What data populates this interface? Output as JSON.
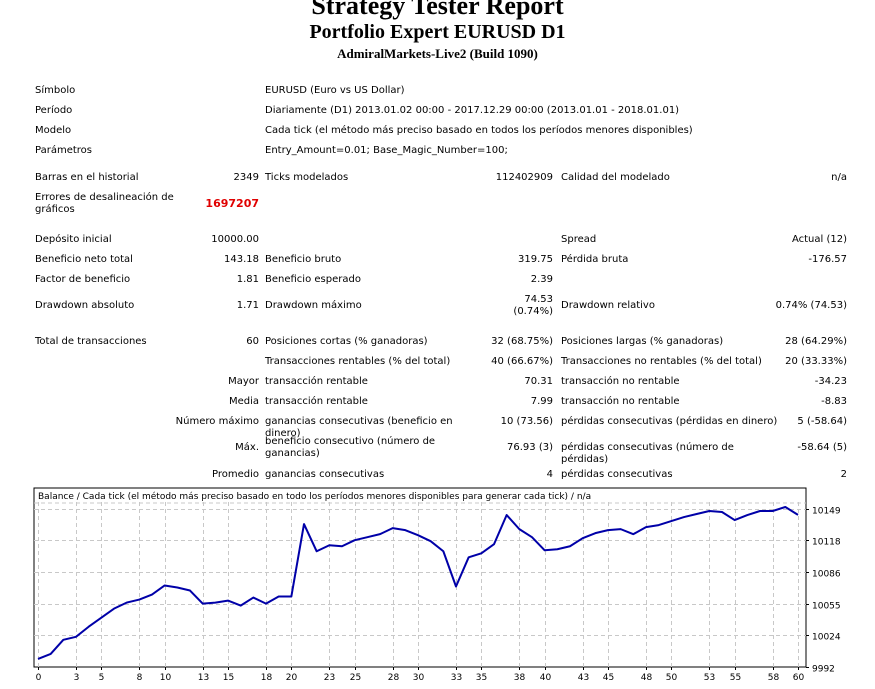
{
  "header": {
    "title": "Strategy Tester Report",
    "subtitle": "Portfolio Expert EURUSD D1",
    "server": "AdmiralMarkets-Live2 (Build 1090)"
  },
  "info": [
    {
      "label": "Símbolo",
      "value": "EURUSD (Euro vs US Dollar)"
    },
    {
      "label": "Período",
      "value": "Diariamente (D1) 2013.01.02 00:00 - 2017.12.29 00:00 (2013.01.01 - 2018.01.01)"
    },
    {
      "label": "Modelo",
      "value": "Cada tick (el método más preciso basado en todos los períodos menores disponibles)"
    },
    {
      "label": "Parámetros",
      "value": "Entry_Amount=0.01; Base_Magic_Number=100;"
    }
  ],
  "stats": [
    [
      "Barras en el historial",
      "2349",
      "Ticks modelados",
      "112402909",
      "Calidad del modelado",
      "n/a"
    ],
    [
      "Errores de desalineación de gráficos",
      "1697207",
      "",
      "",
      "",
      ""
    ],
    [
      "Depósito inicial",
      "10000.00",
      "",
      "",
      "Spread",
      "Actual (12)"
    ],
    [
      "Beneficio neto total",
      "143.18",
      "Beneficio bruto",
      "319.75",
      "Pérdida bruta",
      "-176.57"
    ],
    [
      "Factor de beneficio",
      "1.81",
      "Beneficio esperado",
      "2.39",
      "",
      ""
    ],
    [
      "Drawdown absoluto",
      "1.71",
      "Drawdown máximo",
      "74.53 (0.74%)",
      "Drawdown relativo",
      "0.74% (74.53)"
    ],
    [
      "Total de transacciones",
      "60",
      "Posiciones cortas (% ganadoras)",
      "32 (68.75%)",
      "Posiciones largas (% ganadoras)",
      "28 (64.29%)"
    ],
    [
      "",
      "",
      "Transacciones rentables (% del total)",
      "40 (66.67%)",
      "Transacciones no rentables (% del total)",
      "20 (33.33%)"
    ],
    [
      "",
      "Mayor",
      "transacción rentable",
      "70.31",
      "transacción no rentable",
      "-34.23"
    ],
    [
      "",
      "Media",
      "transacción rentable",
      "7.99",
      "transacción no rentable",
      "-8.83"
    ],
    [
      "",
      "Número máximo",
      "ganancias consecutivas (beneficio en dinero)",
      "10 (73.56)",
      "pérdidas consecutivas (pérdidas en dinero)",
      "5 (-58.64)"
    ],
    [
      "",
      "Máx.",
      "beneficio consecutivo (número de ganancias)",
      "76.93 (3)",
      "pérdidas consecutivas (número de pérdidas)",
      "-58.64 (5)"
    ],
    [
      "",
      "Promedio",
      "ganancias consecutivas",
      "4",
      "pérdidas consecutivas",
      "2"
    ]
  ],
  "chart_data": {
    "type": "line",
    "title": "Balance / Cada tick (el método más preciso basado en todo los períodos menores disponibles para generar cada tick)  / n/a",
    "x_ticks": [
      0,
      3,
      5,
      8,
      10,
      13,
      15,
      18,
      20,
      23,
      25,
      28,
      30,
      33,
      35,
      38,
      40,
      43,
      45,
      48,
      50,
      53,
      55,
      58,
      60
    ],
    "y_ticks": [
      9992,
      10024,
      10055,
      10086,
      10118,
      10149
    ],
    "xlim": [
      0,
      60
    ],
    "ylim": [
      9992,
      10157
    ],
    "series": [
      {
        "name": "Balance",
        "color": "#0000a8",
        "values": [
          10000,
          10005,
          10019,
          10022,
          10032,
          10041,
          10050,
          10056,
          10059,
          10064,
          10073,
          10071,
          10068,
          10055,
          10056,
          10058,
          10053,
          10061,
          10055,
          10062,
          10062,
          10134,
          10107,
          10113,
          10112,
          10118,
          10121,
          10124,
          10130,
          10128,
          10123,
          10117,
          10107,
          10072,
          10101,
          10105,
          10114,
          10143,
          10129,
          10121,
          10108,
          10109,
          10112,
          10120,
          10125,
          10128,
          10129,
          10124,
          10131,
          10133,
          10137,
          10141,
          10144,
          10147,
          10146,
          10138,
          10143,
          10147,
          10147,
          10151,
          10143.18
        ]
      }
    ]
  }
}
